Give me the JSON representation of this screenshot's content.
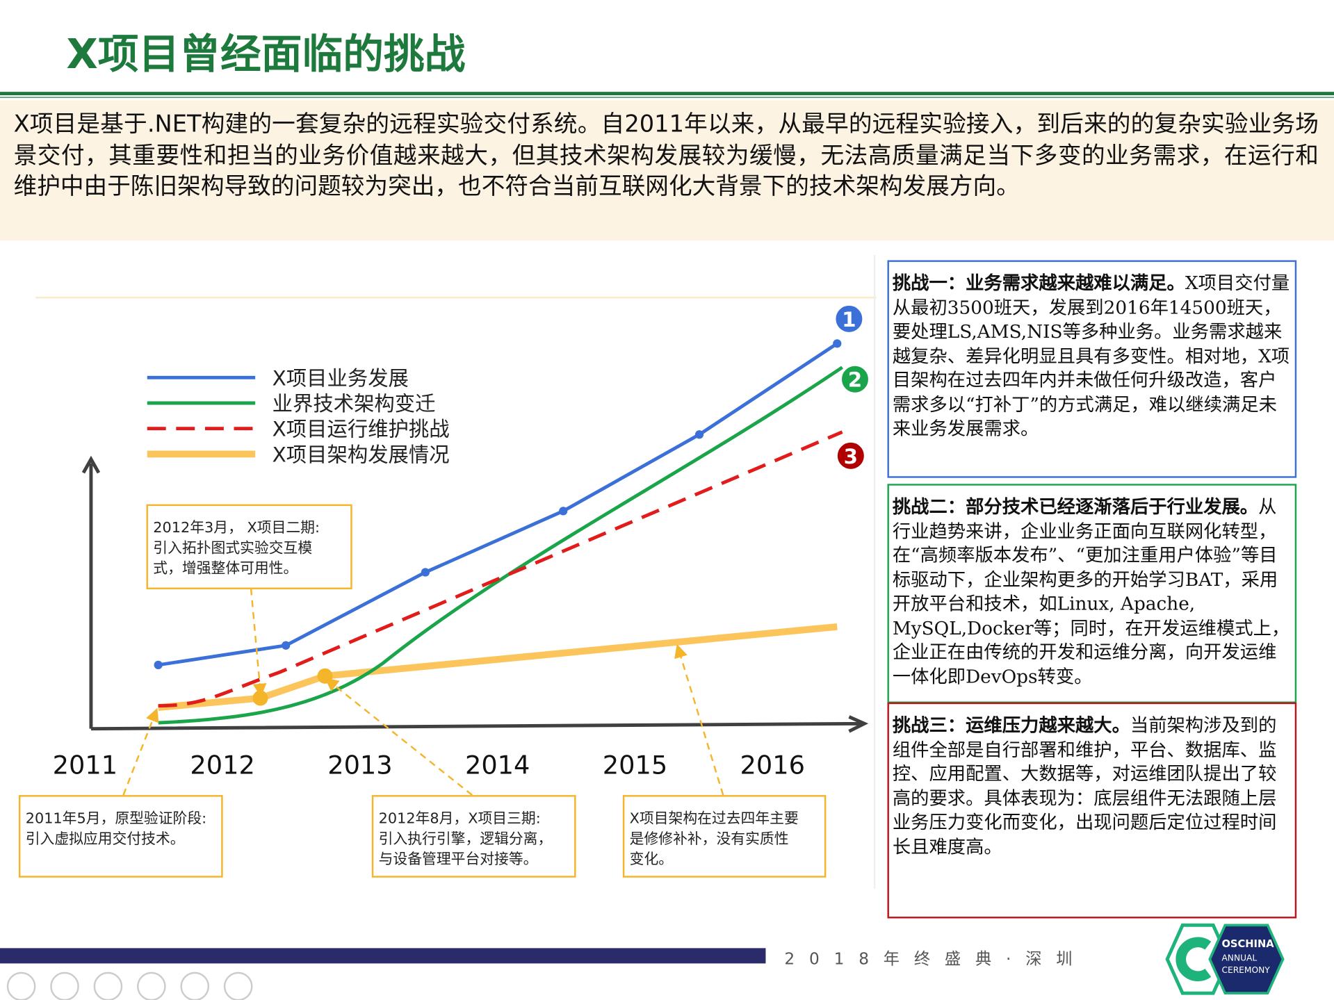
{
  "title": "X项目曾经面临的挑战",
  "intro": "X项目是基于.NET构建的一套复杂的远程实验交付系统。自2011年以来，从最早的远程实验接入，到后来的的复杂实验业务场景交付，其重要性和担当的业务价值越来越大，但其技术架构发展较为缓慢，无法高质量满足当下多变的业务需求，在运行和维护中由于陈旧架构导致的问题较为突出，也不符合当前互联网化大背景下的技术架构发展方向。",
  "legend": [
    "X项目业务发展",
    "业界技术架构变迁",
    "X项目运行维护挑战",
    "X项目架构发展情况"
  ],
  "years": [
    "2011",
    "2012",
    "2013",
    "2014",
    "2015",
    "2016"
  ],
  "markers": [
    "1",
    "2",
    "3"
  ],
  "callouts": [
    "2012年3月， X项目二期:\n引入拓扑图式实验交互模\n式，增强整体可用性。",
    "2011年5月，原型验证阶段:\n引入虚拟应用交付技术。",
    "2012年8月，X项目三期:\n引入执行引擎，逻辑分离，\n与设备管理平台对接等。",
    "X项目架构在过去四年主要\n是修修补补，没有实质性\n变化。"
  ],
  "challenges": [
    {
      "heading": "挑战一：业务需求越来越难以满足。",
      "body": "X项目交付量从最初3500班天，发展到2016年14500班天，要处理LS,AMS,NIS等多种业务。业务需求越来越复杂、差异化明显且具有多变性。相对地，X项目架构在过去四年内并未做任何升级改造，客户需求多以“打补丁”的方式满足，难以继续满足未来业务发展需求。"
    },
    {
      "heading": "挑战二：部分技术已经逐渐落后于行业发展。",
      "body": "从行业趋势来讲，企业业务正面向互联网化转型，在“高频率版本发布”、“更加注重用户体验”等目标驱动下，企业架构更多的开始学习BAT，采用开放平台和技术，如Linux, Apache, MySQL,Docker等；同时，在开发运维模式上，企业正在由传统的开发和运维分离，向开发运维一体化即DevOps转变。"
    },
    {
      "heading": "挑战三：运维压力越来越大。",
      "body": "当前架构涉及到的组件全部是自行部署和维护，平台、数据库、监控、应用配置、大数据等，对运维团队提出了较高的要求。具体表现为：底层组件无法跟随上层业务压力变化而变化，出现问题后定位过程时间长且难度高。"
    }
  ],
  "footer": {
    "event": "2018年终盛典·深圳",
    "logo": [
      "OSCHINA",
      "ANNUAL",
      "CEREMONY"
    ]
  }
}
